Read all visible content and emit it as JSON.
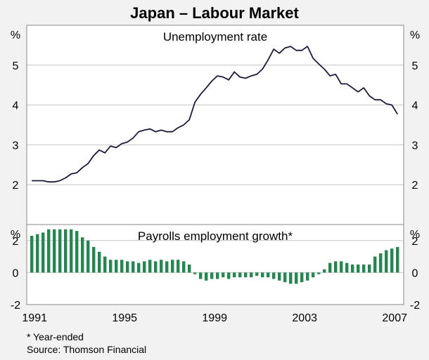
{
  "title": "Japan – Labour Market",
  "notes": {
    "footnote": "*   Year-ended",
    "source": "Source: Thomson Financial"
  },
  "x_tick_labels": [
    "1991",
    "1995",
    "1999",
    "2003",
    "2007"
  ],
  "colors": {
    "line": "#1a1a3a",
    "bars": "#1e8a4e",
    "grid": "#c4c4c4",
    "frame": "#888888",
    "background": "#f2f2f2",
    "plot_background": "#ffffff"
  },
  "chart_data": [
    {
      "type": "line",
      "title": "Unemployment rate",
      "ylabel": "%",
      "yticks": [
        "2",
        "3",
        "4",
        "5"
      ],
      "ylim": [
        1.0,
        6.0
      ],
      "xlim": [
        1990.65,
        2007.4
      ],
      "grid": true,
      "series": [
        {
          "x": [
            1990.875,
            1991.125,
            1991.375,
            1991.625,
            1991.875,
            1992.125,
            1992.375,
            1992.625,
            1992.875,
            1993.125,
            1993.375,
            1993.625,
            1993.875,
            1994.125,
            1994.375,
            1994.625,
            1994.875,
            1995.125,
            1995.375,
            1995.625,
            1995.875,
            1996.125,
            1996.375,
            1996.625,
            1996.875,
            1997.125,
            1997.375,
            1997.625,
            1997.875,
            1998.125,
            1998.375,
            1998.625,
            1998.875,
            1999.125,
            1999.375,
            1999.625,
            1999.875,
            2000.125,
            2000.375,
            2000.625,
            2000.875,
            2001.125,
            2001.375,
            2001.625,
            2001.875,
            2002.125,
            2002.375,
            2002.625,
            2002.875,
            2003.125,
            2003.375,
            2003.625,
            2003.875,
            2004.125,
            2004.375,
            2004.625,
            2004.875,
            2005.125,
            2005.375,
            2005.625,
            2005.875,
            2006.125,
            2006.375,
            2006.625,
            2006.875,
            2007.125
          ],
          "values": [
            2.1,
            2.1,
            2.1,
            2.07,
            2.07,
            2.1,
            2.17,
            2.27,
            2.3,
            2.43,
            2.53,
            2.73,
            2.87,
            2.8,
            2.97,
            2.93,
            3.03,
            3.07,
            3.17,
            3.33,
            3.37,
            3.4,
            3.33,
            3.37,
            3.33,
            3.33,
            3.43,
            3.5,
            3.63,
            4.07,
            4.27,
            4.43,
            4.6,
            4.73,
            4.7,
            4.63,
            4.83,
            4.7,
            4.67,
            4.73,
            4.77,
            4.9,
            5.13,
            5.4,
            5.3,
            5.43,
            5.47,
            5.37,
            5.37,
            5.47,
            5.17,
            5.03,
            4.9,
            4.73,
            4.77,
            4.53,
            4.53,
            4.43,
            4.33,
            4.43,
            4.23,
            4.13,
            4.13,
            4.03,
            4.0,
            3.77
          ]
        }
      ]
    },
    {
      "type": "bar",
      "title": "Payrolls employment growth*",
      "ylabel": "%",
      "yticks": [
        "-2",
        "0",
        "2"
      ],
      "ylim": [
        -2.0,
        3.0
      ],
      "xlim": [
        1990.65,
        2007.4
      ],
      "grid": true,
      "series": [
        {
          "x": [
            1990.875,
            1991.125,
            1991.375,
            1991.625,
            1991.875,
            1992.125,
            1992.375,
            1992.625,
            1992.875,
            1993.125,
            1993.375,
            1993.625,
            1993.875,
            1994.125,
            1994.375,
            1994.625,
            1994.875,
            1995.125,
            1995.375,
            1995.625,
            1995.875,
            1996.125,
            1996.375,
            1996.625,
            1996.875,
            1997.125,
            1997.375,
            1997.625,
            1997.875,
            1998.125,
            1998.375,
            1998.625,
            1998.875,
            1999.125,
            1999.375,
            1999.625,
            1999.875,
            2000.125,
            2000.375,
            2000.625,
            2000.875,
            2001.125,
            2001.375,
            2001.625,
            2001.875,
            2002.125,
            2002.375,
            2002.625,
            2002.875,
            2003.125,
            2003.375,
            2003.625,
            2003.875,
            2004.125,
            2004.375,
            2004.625,
            2004.875,
            2005.125,
            2005.375,
            2005.625,
            2005.875,
            2006.125,
            2006.375,
            2006.625,
            2006.875,
            2007.125
          ],
          "values": [
            2.3,
            2.4,
            2.5,
            2.7,
            2.7,
            2.7,
            2.7,
            2.7,
            2.6,
            2.2,
            2.0,
            1.6,
            1.3,
            1.0,
            0.8,
            0.8,
            0.8,
            0.7,
            0.7,
            0.6,
            0.7,
            0.8,
            0.7,
            0.8,
            0.7,
            0.8,
            0.8,
            0.7,
            0.5,
            -0.1,
            -0.4,
            -0.5,
            -0.4,
            -0.4,
            -0.3,
            -0.4,
            -0.3,
            -0.3,
            -0.3,
            -0.3,
            -0.2,
            -0.3,
            -0.3,
            -0.4,
            -0.5,
            -0.6,
            -0.7,
            -0.7,
            -0.6,
            -0.5,
            -0.3,
            -0.1,
            0.2,
            0.6,
            0.7,
            0.7,
            0.6,
            0.5,
            0.5,
            0.5,
            0.5,
            1.0,
            1.2,
            1.4,
            1.5,
            1.6
          ]
        }
      ]
    }
  ]
}
